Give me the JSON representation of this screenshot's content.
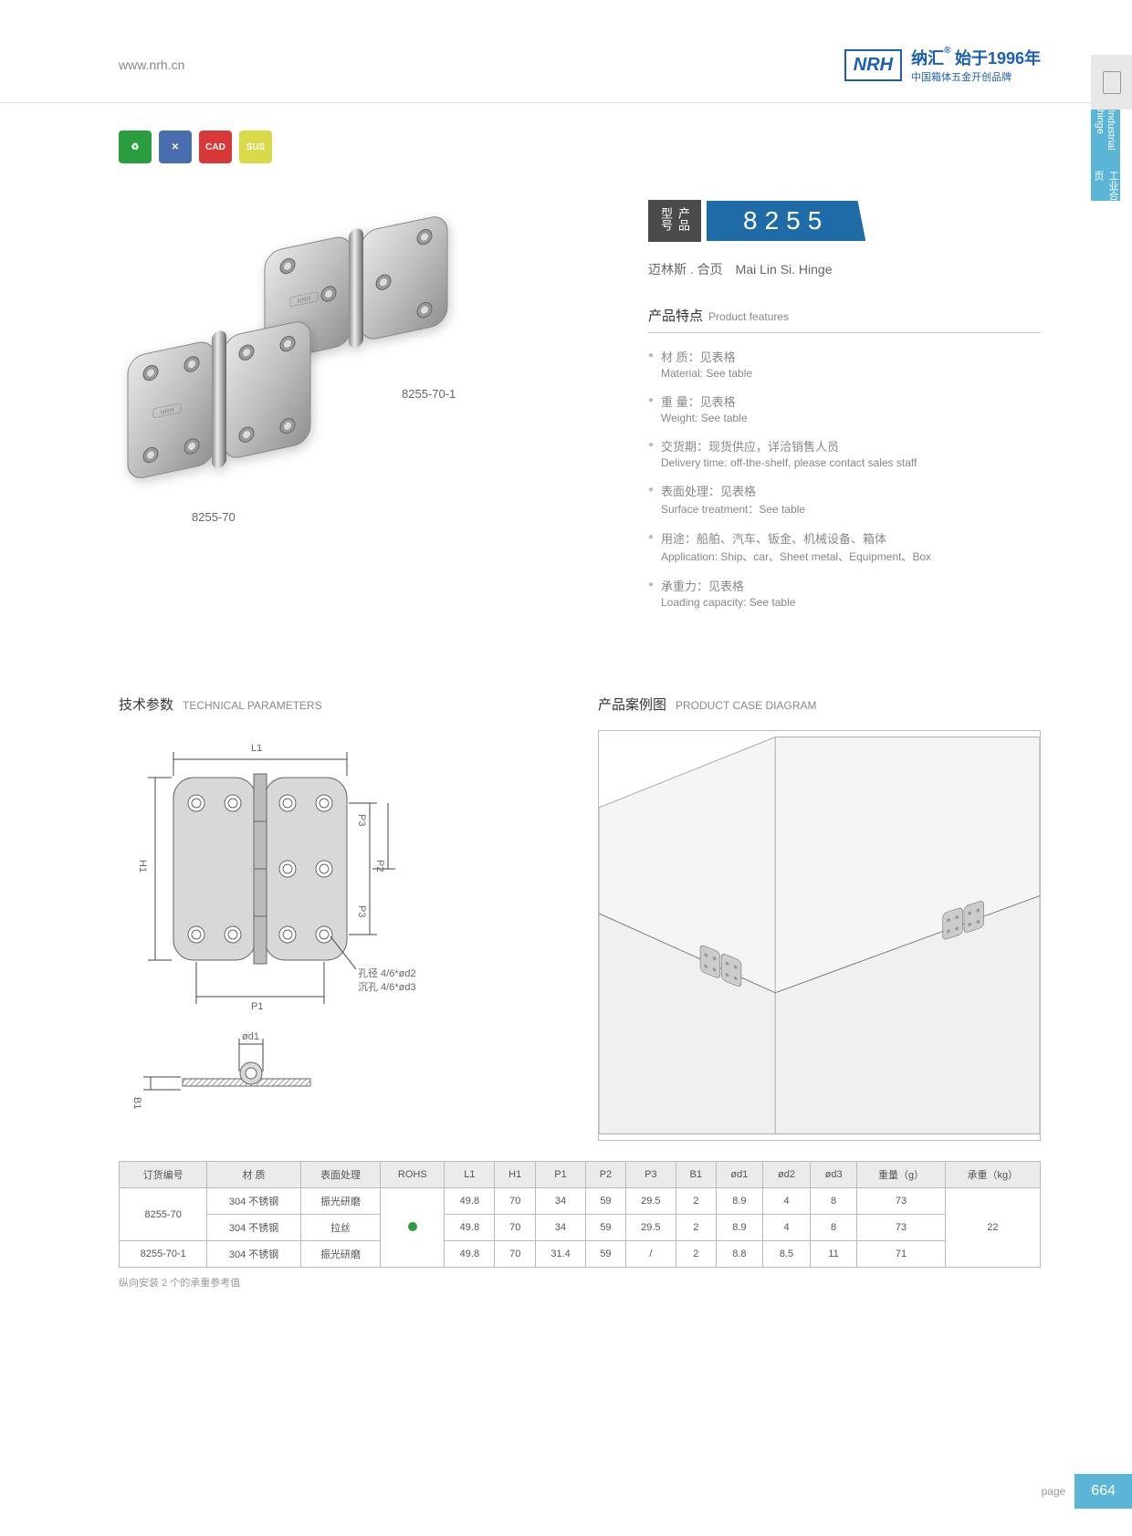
{
  "header": {
    "url": "www.nrh.cn",
    "logo": "NRH",
    "logo_cn": "纳汇",
    "logo_year": "始于1996年",
    "logo_sub": "中国箱体五金开创品牌"
  },
  "side_tab": {
    "cn": "工业合页",
    "en": "Industrial hinge"
  },
  "badges": [
    {
      "color": "#2a9d3f",
      "text": "♻"
    },
    {
      "color": "#4a6db0",
      "text": "✕"
    },
    {
      "color": "#d93838",
      "text": "CAD"
    },
    {
      "color": "#d9d94a",
      "text": "SUS"
    }
  ],
  "product": {
    "model_label": "产品型号",
    "model": "8255",
    "name_cn": "迈林斯 . 合页",
    "name_en": "Mai Lin Si. Hinge",
    "img1_label": "8255-70",
    "img2_label": "8255-70-1"
  },
  "features": {
    "title_cn": "产品特点",
    "title_en": "Product features",
    "items": [
      {
        "cn": "材  质：见表格",
        "en": "Material: See table"
      },
      {
        "cn": "重  量：见表格",
        "en": "Weight: See table"
      },
      {
        "cn": "交货期：现货供应，详洽销售人员",
        "en": "Delivery time: off-the-shelf, please contact sales staff"
      },
      {
        "cn": "表面处理：见表格",
        "en": "Surface treatment：See table"
      },
      {
        "cn": "用途：船舶、汽车、钣金、机械设备、箱体",
        "en": "Application: Ship、car、Sheet metal、Equipment、Box"
      },
      {
        "cn": "承重力：见表格",
        "en": "Loading capacity: See table"
      }
    ]
  },
  "tech": {
    "title_cn": "技术参数",
    "title_en": "TECHNICAL PARAMETERS",
    "labels": {
      "L1": "L1",
      "H1": "H1",
      "P1": "P1",
      "P2": "P2",
      "P3": "P3",
      "B1": "B1",
      "od1": "ød1",
      "hole_note1": "孔径 4/6*ød2",
      "hole_note2": "沉孔 4/6*ød3"
    }
  },
  "case": {
    "title_cn": "产品案例图",
    "title_en": "PRODUCT CASE DIAGRAM"
  },
  "table": {
    "headers": [
      "订货编号",
      "材  质",
      "表面处理",
      "ROHS",
      "L1",
      "H1",
      "P1",
      "P2",
      "P3",
      "B1",
      "ød1",
      "ød2",
      "ød3",
      "重量（g）",
      "承重（kg）"
    ],
    "rows": [
      {
        "code": "8255-70",
        "mat": "304 不锈钢",
        "surf": "振光研磨",
        "l1": "49.8",
        "h1": "70",
        "p1": "34",
        "p2": "59",
        "p3": "29.5",
        "b1": "2",
        "d1": "8.9",
        "d2": "4",
        "d3": "8",
        "wt": "73",
        "load": "22",
        "rowspan_code": 2,
        "rowspan_load": 3,
        "rohs_rowspan": 3
      },
      {
        "mat": "304 不锈钢",
        "surf": "拉丝",
        "l1": "49.8",
        "h1": "70",
        "p1": "34",
        "p2": "59",
        "p3": "29.5",
        "b1": "2",
        "d1": "8.9",
        "d2": "4",
        "d3": "8",
        "wt": "73"
      },
      {
        "code": "8255-70-1",
        "mat": "304 不锈钢",
        "surf": "振光研磨",
        "l1": "49.8",
        "h1": "70",
        "p1": "31.4",
        "p2": "59",
        "p3": "/",
        "b1": "2",
        "d1": "8.8",
        "d2": "8.5",
        "d3": "11",
        "wt": "71"
      }
    ],
    "note": "纵向安装 2 个的承重参考值"
  },
  "footer": {
    "page_label": "page",
    "page_num": "664"
  }
}
